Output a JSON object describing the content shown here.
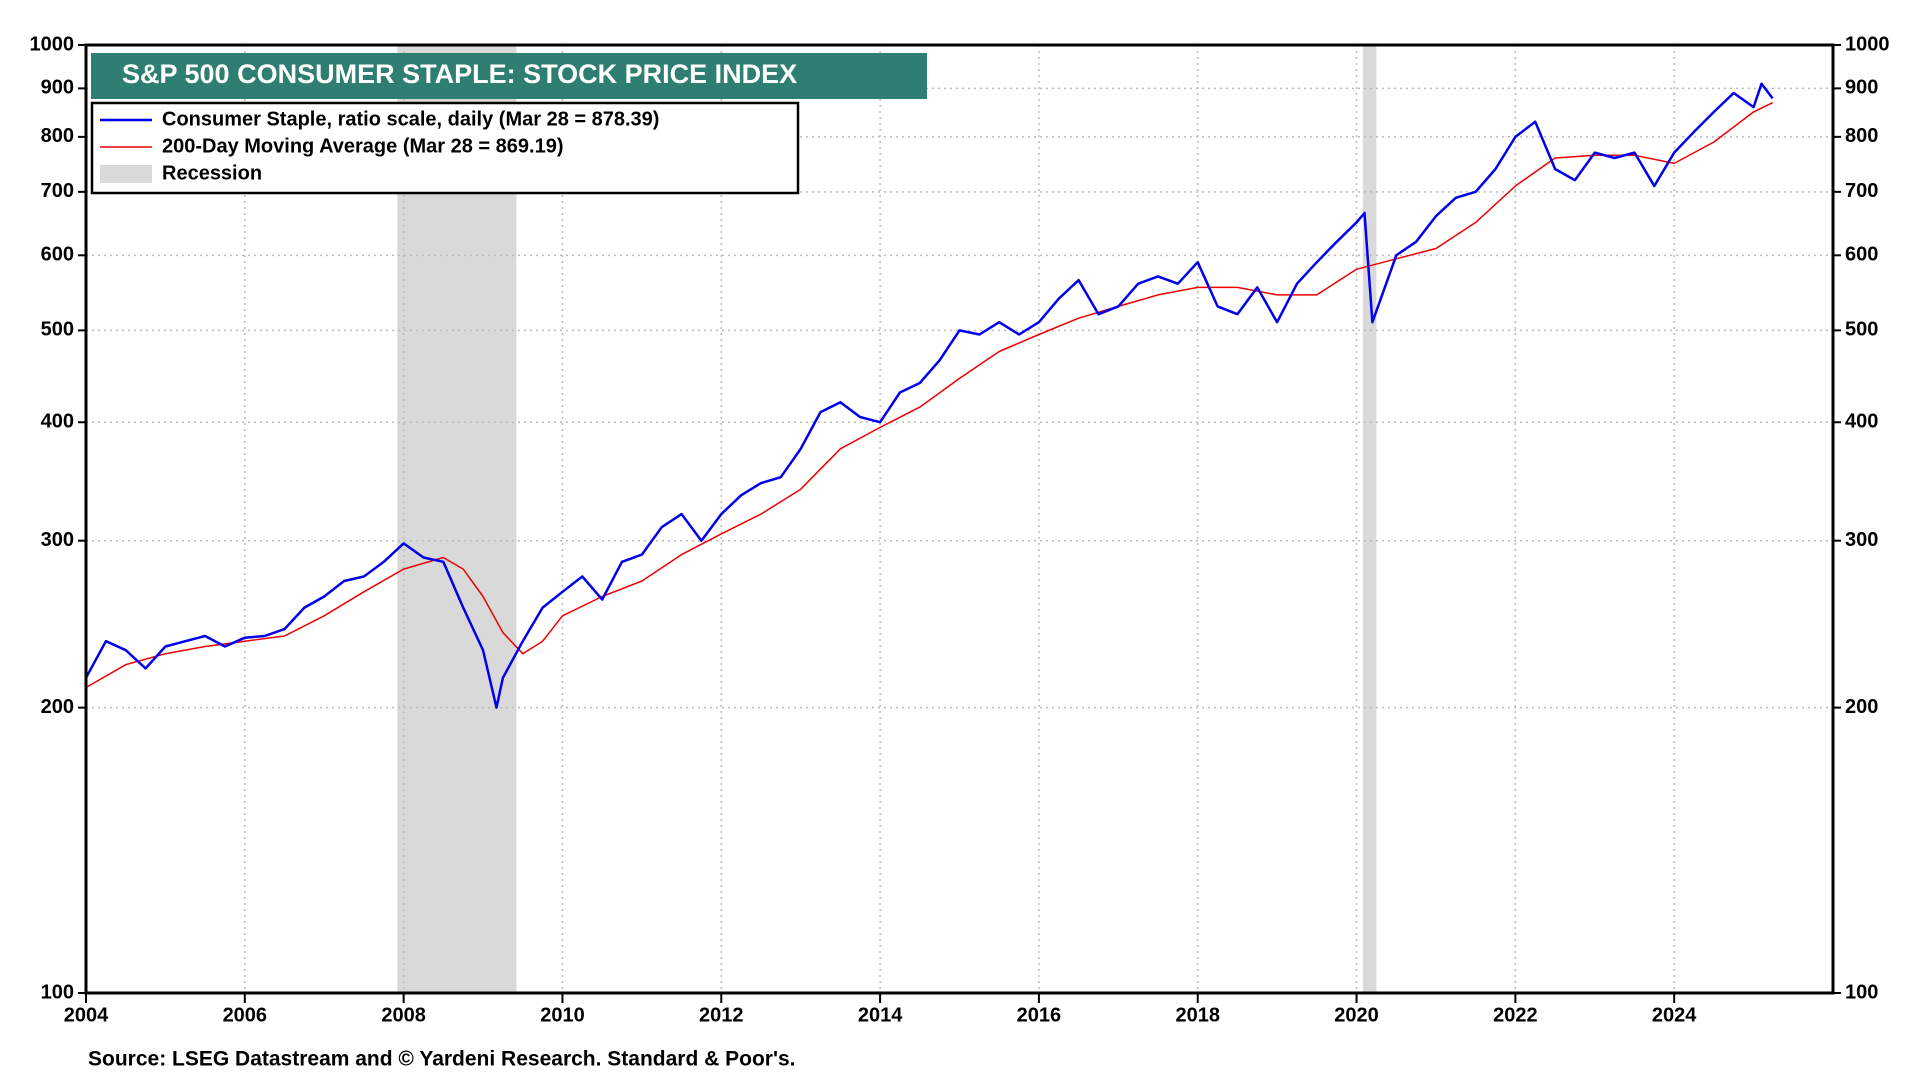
{
  "chart_data": {
    "type": "line",
    "title": "S&P 500 CONSUMER STAPLE: STOCK PRICE INDEX",
    "source": "Source: LSEG Datastream and © Yardeni Research. Standard & Poor's.",
    "log_scale": true,
    "grid": true,
    "title_color": "#2e7f72",
    "xlim": [
      2004,
      2026
    ],
    "xticks": [
      2004,
      2006,
      2008,
      2010,
      2012,
      2014,
      2016,
      2018,
      2020,
      2022,
      2024
    ],
    "ylim": [
      100,
      1000
    ],
    "yticks": [
      100,
      200,
      300,
      400,
      500,
      600,
      700,
      800,
      900,
      1000
    ],
    "recessions": {
      "name": "Recession",
      "color": "#d9d9d9",
      "ranges": [
        [
          2007.92,
          2009.42
        ],
        [
          2020.08,
          2020.25
        ]
      ]
    },
    "series": [
      {
        "name": "Consumer Staple, ratio scale, daily (Mar 28 = 878.39)",
        "color": "#0000ee",
        "x": [
          2004.0,
          2004.25,
          2004.5,
          2004.75,
          2005.0,
          2005.25,
          2005.5,
          2005.75,
          2006.0,
          2006.25,
          2006.5,
          2006.75,
          2007.0,
          2007.25,
          2007.5,
          2007.75,
          2008.0,
          2008.25,
          2008.5,
          2008.75,
          2009.0,
          2009.17,
          2009.25,
          2009.5,
          2009.75,
          2010.0,
          2010.25,
          2010.5,
          2010.75,
          2011.0,
          2011.25,
          2011.5,
          2011.75,
          2012.0,
          2012.25,
          2012.5,
          2012.75,
          2013.0,
          2013.25,
          2013.5,
          2013.75,
          2014.0,
          2014.25,
          2014.5,
          2014.75,
          2015.0,
          2015.25,
          2015.5,
          2015.75,
          2016.0,
          2016.25,
          2016.5,
          2016.75,
          2017.0,
          2017.25,
          2017.5,
          2017.75,
          2018.0,
          2018.25,
          2018.5,
          2018.75,
          2019.0,
          2019.25,
          2019.5,
          2019.75,
          2020.0,
          2020.1,
          2020.2,
          2020.5,
          2020.75,
          2021.0,
          2021.25,
          2021.5,
          2021.75,
          2022.0,
          2022.25,
          2022.5,
          2022.75,
          2023.0,
          2023.25,
          2023.5,
          2023.75,
          2024.0,
          2024.25,
          2024.5,
          2024.75,
          2025.0,
          2025.1,
          2025.24
        ],
        "values": [
          215,
          235,
          230,
          220,
          232,
          235,
          238,
          232,
          237,
          238,
          242,
          255,
          262,
          272,
          275,
          285,
          298,
          288,
          285,
          255,
          230,
          200,
          215,
          235,
          255,
          265,
          275,
          260,
          285,
          290,
          310,
          320,
          300,
          320,
          335,
          345,
          350,
          375,
          410,
          420,
          405,
          400,
          430,
          440,
          465,
          500,
          495,
          510,
          495,
          510,
          540,
          565,
          520,
          530,
          560,
          570,
          560,
          590,
          530,
          520,
          555,
          510,
          560,
          590,
          620,
          650,
          665,
          510,
          600,
          620,
          660,
          690,
          700,
          740,
          800,
          830,
          740,
          720,
          770,
          760,
          770,
          710,
          770,
          810,
          850,
          890,
          860,
          910,
          878.39
        ]
      },
      {
        "name": "200-Day Moving Average (Mar 28 = 869.19)",
        "color": "#ee0000",
        "x": [
          2004.0,
          2004.5,
          2005.0,
          2005.5,
          2006.0,
          2006.5,
          2007.0,
          2007.5,
          2008.0,
          2008.5,
          2008.75,
          2009.0,
          2009.25,
          2009.5,
          2009.75,
          2010.0,
          2010.5,
          2011.0,
          2011.5,
          2012.0,
          2012.5,
          2013.0,
          2013.5,
          2014.0,
          2014.5,
          2015.0,
          2015.5,
          2016.0,
          2016.5,
          2017.0,
          2017.5,
          2018.0,
          2018.5,
          2019.0,
          2019.5,
          2020.0,
          2020.5,
          2021.0,
          2021.5,
          2022.0,
          2022.5,
          2023.0,
          2023.5,
          2024.0,
          2024.5,
          2025.0,
          2025.24
        ],
        "values": [
          210,
          222,
          228,
          232,
          235,
          238,
          250,
          265,
          280,
          288,
          280,
          262,
          240,
          228,
          235,
          250,
          262,
          272,
          290,
          305,
          320,
          340,
          375,
          395,
          415,
          445,
          475,
          495,
          515,
          530,
          545,
          555,
          555,
          545,
          545,
          580,
          595,
          610,
          650,
          710,
          760,
          765,
          765,
          750,
          790,
          850,
          869.19
        ]
      }
    ]
  }
}
